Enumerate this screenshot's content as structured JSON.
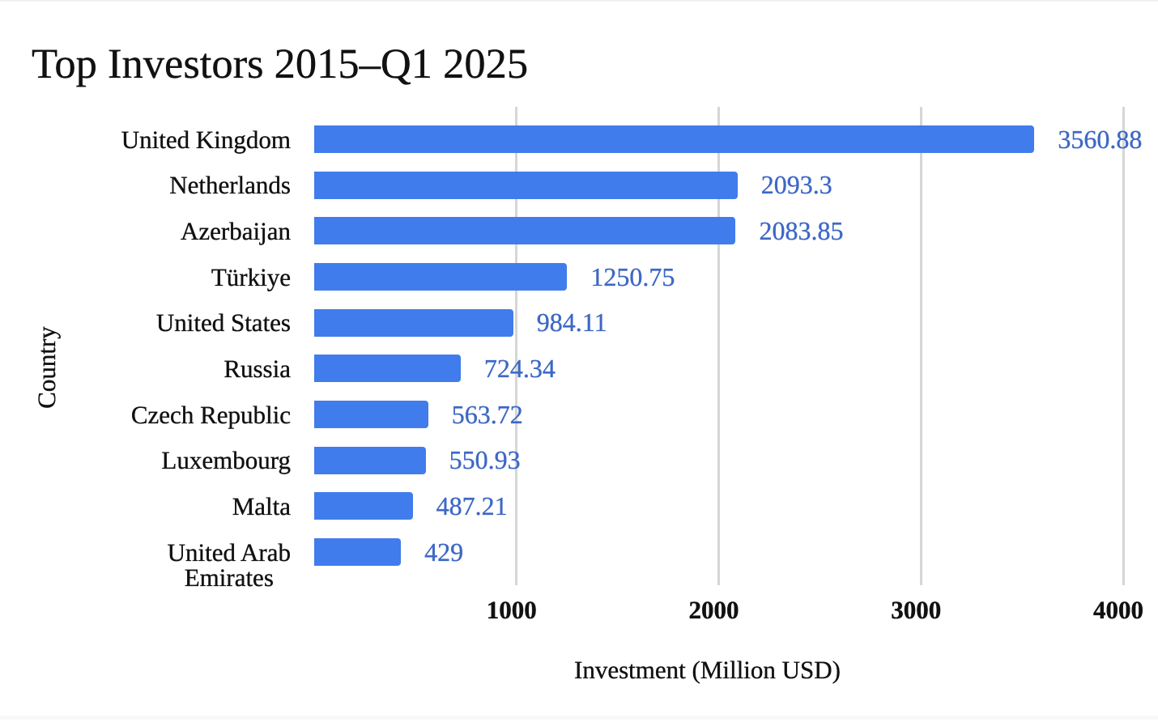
{
  "chart_data": {
    "type": "bar",
    "orientation": "horizontal",
    "title": "Top Investors 2015–Q1 2025",
    "xlabel": "Investment (Million USD)",
    "ylabel": "Country",
    "categories": [
      "United Kingdom",
      "Netherlands",
      "Azerbaijan",
      "Türkiye",
      "United States",
      "Russia",
      "Czech Republic",
      "Luxembourg",
      "Malta",
      "United Arab\nEmirates"
    ],
    "values": [
      3560.88,
      2093.3,
      2083.85,
      1250.75,
      984.11,
      724.34,
      563.72,
      550.93,
      487.21,
      429
    ],
    "value_labels": [
      "3560.88",
      "2093.3",
      "2083.85",
      "1250.75",
      "984.11",
      "724.34",
      "563.72",
      "550.93",
      "487.21",
      "429"
    ],
    "x_ticks": [
      1000,
      2000,
      3000,
      4000
    ],
    "x_tick_labels": [
      "1000",
      "2000",
      "3000",
      "4000"
    ],
    "xlim": [
      0,
      4000
    ],
    "grid": true,
    "legend": "none",
    "colors": {
      "bar": "#407cec",
      "value_label": "#3d68c5",
      "gridline": "#d6d6d6",
      "text": "#111111",
      "background": "#ffffff"
    }
  }
}
